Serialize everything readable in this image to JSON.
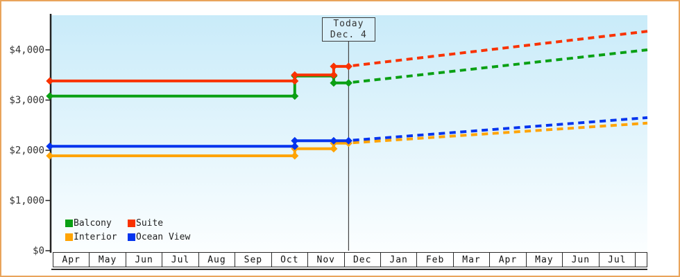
{
  "chart": {
    "today_label": {
      "line1": "Today",
      "line2": "Dec. 4"
    },
    "y_axis_labels": [
      "$4,000",
      "$3,000",
      "$2,000",
      "$1,000",
      "$0"
    ],
    "months": [
      "Apr",
      "May",
      "Jun",
      "Jul",
      "Aug",
      "Sep",
      "Oct",
      "Nov",
      "Dec",
      "Jan",
      "Feb",
      "Mar",
      "Apr",
      "May",
      "Jun",
      "Jul"
    ],
    "legend": [
      {
        "label": "Balcony",
        "color": "#0AA014"
      },
      {
        "label": "Suite",
        "color": "#F93200"
      },
      {
        "label": "Interior",
        "color": "#FFA405"
      },
      {
        "label": "Ocean View",
        "color": "#0434EE"
      }
    ]
  },
  "colors": {
    "frame_border": "#E9A45B",
    "plot_gradient_top": "#C9EBF9",
    "plot_gradient_bottom": "#FBFEFF",
    "axis": "#222222",
    "tick_text": "#333333",
    "today_line": "#444444",
    "today_box_bg": "#D7F0FB"
  },
  "chart_data": {
    "type": "line",
    "title": "",
    "xlabel": "",
    "ylabel": "",
    "x_categories": [
      "Apr",
      "May",
      "Jun",
      "Jul",
      "Aug",
      "Sep",
      "Oct",
      "Nov",
      "Dec",
      "Jan",
      "Feb",
      "Mar",
      "Apr",
      "May",
      "Jun",
      "Jul"
    ],
    "x_unit": "month index (0 = left edge of first Apr cell)",
    "ylim": [
      0,
      4690
    ],
    "yticks": [
      0,
      1000,
      2000,
      3000,
      4000
    ],
    "ytick_labels": [
      "$0",
      "$1,000",
      "$2,000",
      "$3,000",
      "$4,000"
    ],
    "grid": false,
    "legend_position": "bottom-left",
    "line_style": {
      "history": "solid",
      "forecast": "dashed"
    },
    "today": {
      "label": "Today",
      "date": "Dec. 4",
      "x": 8.13
    },
    "series": [
      {
        "name": "Interior",
        "color": "#FFA405",
        "history": [
          [
            -0.08,
            1890
          ],
          [
            6.65,
            1890
          ],
          [
            6.65,
            2030
          ],
          [
            7.72,
            2030
          ],
          [
            7.72,
            2140
          ],
          [
            8.13,
            2140
          ]
        ],
        "forecast": [
          [
            8.25,
            2150
          ],
          [
            16.34,
            2540
          ]
        ]
      },
      {
        "name": "Ocean View",
        "color": "#0434EE",
        "history": [
          [
            -0.08,
            2080
          ],
          [
            6.65,
            2080
          ],
          [
            6.65,
            2190
          ],
          [
            7.72,
            2190
          ],
          [
            8.13,
            2190
          ]
        ],
        "forecast": [
          [
            8.25,
            2200
          ],
          [
            16.34,
            2650
          ]
        ]
      },
      {
        "name": "Balcony",
        "color": "#0AA014",
        "history": [
          [
            -0.08,
            3080
          ],
          [
            6.65,
            3080
          ],
          [
            6.65,
            3480
          ],
          [
            7.72,
            3480
          ],
          [
            7.72,
            3340
          ],
          [
            8.13,
            3340
          ]
        ],
        "forecast": [
          [
            8.25,
            3355
          ],
          [
            16.34,
            4000
          ]
        ]
      },
      {
        "name": "Suite",
        "color": "#F93200",
        "history": [
          [
            -0.08,
            3380
          ],
          [
            6.65,
            3380
          ],
          [
            6.65,
            3500
          ],
          [
            7.72,
            3500
          ],
          [
            7.72,
            3670
          ],
          [
            8.13,
            3670
          ]
        ],
        "forecast": [
          [
            8.25,
            3685
          ],
          [
            16.34,
            4370
          ]
        ]
      }
    ]
  }
}
